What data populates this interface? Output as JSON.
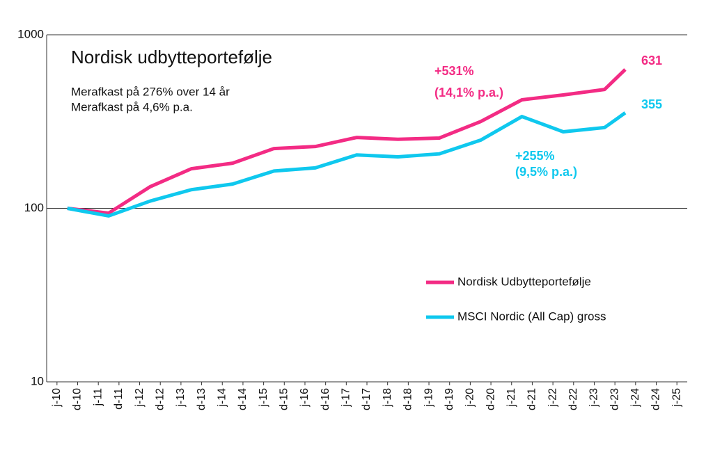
{
  "chart_data": {
    "type": "line",
    "title": "Nordisk udbytteportefølje",
    "subtitle": [
      "Merafkast på 276% over 14 år",
      "Merafkast på 4,6% p.a."
    ],
    "x": [
      0.5,
      2.5,
      4.5,
      6.5,
      8.5,
      10.5,
      12.5,
      14.5,
      16.5,
      18.5,
      20.5,
      22.5,
      24.5,
      26.5,
      27.5
    ],
    "xlim": [
      -0.5,
      30.5
    ],
    "xticks": [
      {
        "value": 0,
        "label": "j-10"
      },
      {
        "value": 1,
        "label": "d-10"
      },
      {
        "value": 2,
        "label": "j-11"
      },
      {
        "value": 3,
        "label": "d-11"
      },
      {
        "value": 4,
        "label": "j-12"
      },
      {
        "value": 5,
        "label": "d-12"
      },
      {
        "value": 6,
        "label": "j-13"
      },
      {
        "value": 7,
        "label": "d-13"
      },
      {
        "value": 8,
        "label": "j-14"
      },
      {
        "value": 9,
        "label": "d-14"
      },
      {
        "value": 10,
        "label": "j-15"
      },
      {
        "value": 11,
        "label": "d-15"
      },
      {
        "value": 12,
        "label": "j-16"
      },
      {
        "value": 13,
        "label": "d-16"
      },
      {
        "value": 14,
        "label": "j-17"
      },
      {
        "value": 15,
        "label": "d-17"
      },
      {
        "value": 16,
        "label": "j-18"
      },
      {
        "value": 17,
        "label": "d-18"
      },
      {
        "value": 18,
        "label": "j-19"
      },
      {
        "value": 19,
        "label": "d-19"
      },
      {
        "value": 20,
        "label": "j-20"
      },
      {
        "value": 21,
        "label": "d-20"
      },
      {
        "value": 22,
        "label": "j-21"
      },
      {
        "value": 23,
        "label": "d-21"
      },
      {
        "value": 24,
        "label": "j-22"
      },
      {
        "value": 25,
        "label": "d-22"
      },
      {
        "value": 26,
        "label": "j-23"
      },
      {
        "value": 27,
        "label": "d-23"
      },
      {
        "value": 28,
        "label": "j-24"
      },
      {
        "value": 29,
        "label": "d-24"
      },
      {
        "value": 30,
        "label": "j-25"
      }
    ],
    "ylim": [
      10,
      1000
    ],
    "yticks": [
      10,
      100,
      1000
    ],
    "log_y": true,
    "grid": true,
    "legend": "right",
    "series": [
      {
        "name": "Nordisk Udbytteportefølje",
        "color": "#f32b84",
        "values": [
          100,
          93.8,
          133,
          169,
          182,
          221,
          227,
          256,
          250,
          254,
          316,
          422,
          450,
          484,
          631
        ]
      },
      {
        "name": "MSCI Nordic (All Cap) gross",
        "color": "#0fc8ee",
        "values": [
          100,
          90.4,
          110,
          128,
          138,
          164,
          171,
          203,
          198,
          206,
          247,
          338,
          276,
          292,
          355
        ]
      }
    ],
    "annotations": [
      "+531%",
      "(14,1% p.a.)",
      "631",
      "+255%",
      "(9,5% p.a.)",
      "355"
    ]
  }
}
